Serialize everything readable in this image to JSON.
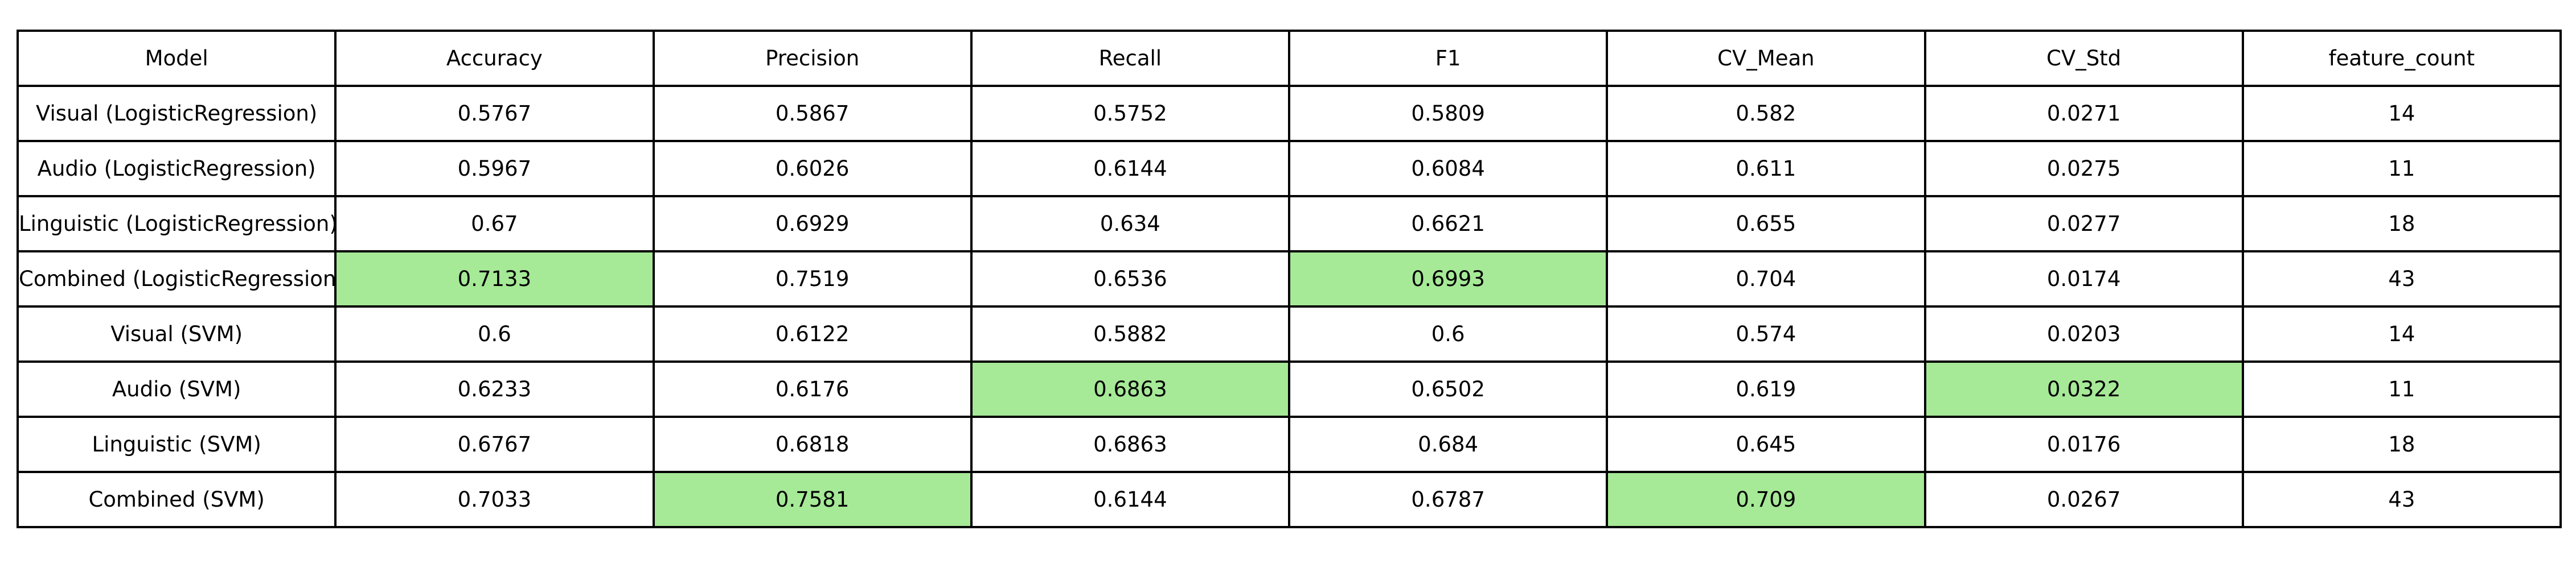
{
  "chart_data": {
    "type": "table",
    "highlight_color": "#a6e997",
    "columns": [
      "Model",
      "Accuracy",
      "Precision",
      "Recall",
      "F1",
      "CV_Mean",
      "CV_Std",
      "feature_count"
    ],
    "rows": [
      {
        "cells": [
          "Visual (LogisticRegression)",
          "0.5767",
          "0.5867",
          "0.5752",
          "0.5809",
          "0.582",
          "0.0271",
          "14"
        ],
        "highlight": []
      },
      {
        "cells": [
          "Audio (LogisticRegression)",
          "0.5967",
          "0.6026",
          "0.6144",
          "0.6084",
          "0.611",
          "0.0275",
          "11"
        ],
        "highlight": []
      },
      {
        "cells": [
          "Linguistic (LogisticRegression)",
          "0.67",
          "0.6929",
          "0.634",
          "0.6621",
          "0.655",
          "0.0277",
          "18"
        ],
        "highlight": []
      },
      {
        "cells": [
          "Combined (LogisticRegression)",
          "0.7133",
          "0.7519",
          "0.6536",
          "0.6993",
          "0.704",
          "0.0174",
          "43"
        ],
        "highlight": [
          1,
          4
        ]
      },
      {
        "cells": [
          "Visual (SVM)",
          "0.6",
          "0.6122",
          "0.5882",
          "0.6",
          "0.574",
          "0.0203",
          "14"
        ],
        "highlight": []
      },
      {
        "cells": [
          "Audio (SVM)",
          "0.6233",
          "0.6176",
          "0.6863",
          "0.6502",
          "0.619",
          "0.0322",
          "11"
        ],
        "highlight": [
          3,
          6
        ]
      },
      {
        "cells": [
          "Linguistic (SVM)",
          "0.6767",
          "0.6818",
          "0.6863",
          "0.684",
          "0.645",
          "0.0176",
          "18"
        ],
        "highlight": []
      },
      {
        "cells": [
          "Combined (SVM)",
          "0.7033",
          "0.7581",
          "0.6144",
          "0.6787",
          "0.709",
          "0.0267",
          "43"
        ],
        "highlight": [
          2,
          5
        ]
      }
    ]
  }
}
